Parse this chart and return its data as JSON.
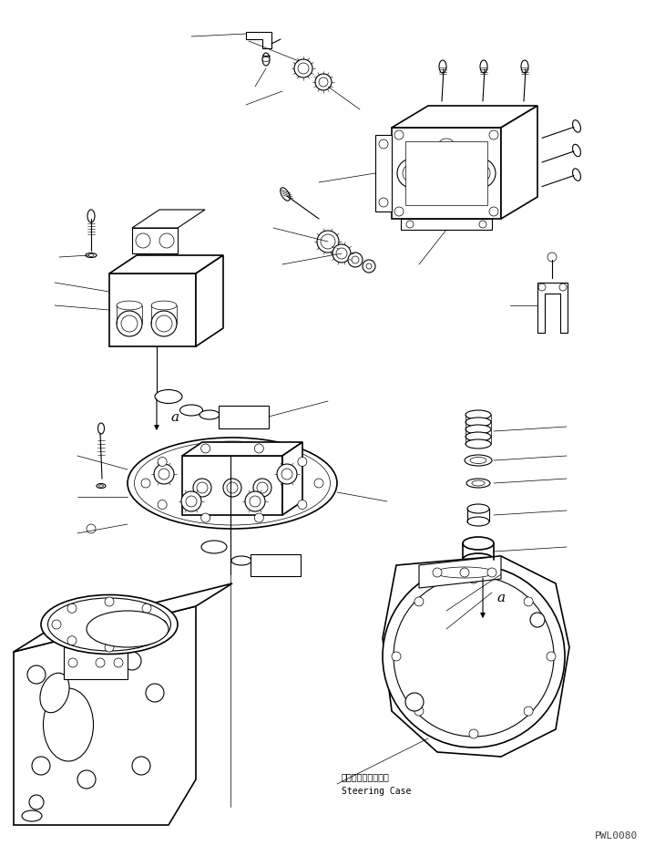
{
  "bg_color": "#ffffff",
  "line_color": "#000000",
  "fig_width": 7.3,
  "fig_height": 9.39,
  "dpi": 100,
  "watermark": "PWL0080",
  "label_a_1": "a",
  "label_a_2": "a",
  "label_steering_jp": "ステアリングケース",
  "label_steering_en": "Steering Case"
}
